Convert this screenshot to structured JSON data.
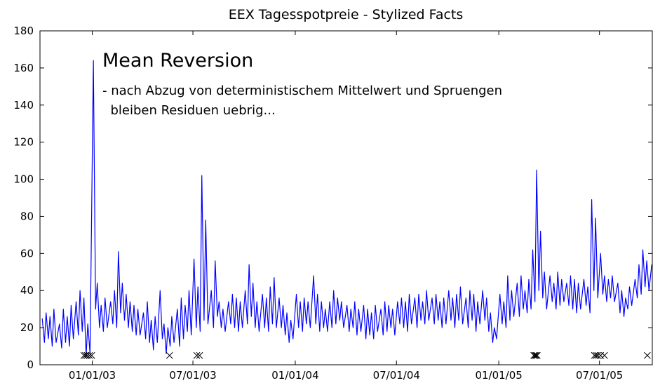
{
  "chart_data": {
    "type": "line",
    "title": "EEX Tagesspotpreie - Stylized Facts",
    "annotations": [
      "Mean Reversion",
      "- nach Abzug von deterministischem Mittelwert und Spruengen",
      "  bleiben Residuen uebrig..."
    ],
    "xlim": [
      "09/29/02",
      "10/04/05"
    ],
    "xticks": [
      "01/01/03",
      "07/01/03",
      "01/01/04",
      "07/01/04",
      "01/01/05",
      "07/01/05"
    ],
    "ylim": [
      0,
      180
    ],
    "yticks": [
      0,
      20,
      40,
      60,
      80,
      100,
      120,
      140,
      160,
      180
    ],
    "series": [
      {
        "color": "#0000ff",
        "x": [
          "10/03/02",
          "10/07/02",
          "10/10/02",
          "10/14/02",
          "10/17/02",
          "10/21/02",
          "10/24/02",
          "10/28/02",
          "11/03/02",
          "11/07/02",
          "11/10/02",
          "11/14/02",
          "11/17/02",
          "11/21/02",
          "11/24/02",
          "11/28/02",
          "12/03/02",
          "12/07/02",
          "12/10/02",
          "12/14/02",
          "12/17/02",
          "12/21/02",
          "12/24/02",
          "12/28/02",
          "01/03/03",
          "01/07/03",
          "01/10/03",
          "01/14/03",
          "01/17/03",
          "01/21/03",
          "01/24/03",
          "01/28/03",
          "02/03/03",
          "02/07/03",
          "02/10/03",
          "02/14/03",
          "02/17/03",
          "02/21/03",
          "02/24/03",
          "02/28/03",
          "03/03/03",
          "03/07/03",
          "03/10/03",
          "03/14/03",
          "03/17/03",
          "03/21/03",
          "03/24/03",
          "03/28/03",
          "04/03/03",
          "04/07/03",
          "04/10/03",
          "04/14/03",
          "04/17/03",
          "04/21/03",
          "04/24/03",
          "04/28/03",
          "05/03/03",
          "05/07/03",
          "05/10/03",
          "05/14/03",
          "05/17/03",
          "05/21/03",
          "05/24/03",
          "05/28/03",
          "06/03/03",
          "06/07/03",
          "06/10/03",
          "06/14/03",
          "06/17/03",
          "06/21/03",
          "06/24/03",
          "06/28/03",
          "07/03/03",
          "07/07/03",
          "07/10/03",
          "07/14/03",
          "07/17/03",
          "07/21/03",
          "07/24/03",
          "07/28/03",
          "08/03/03",
          "08/07/03",
          "08/10/03",
          "08/14/03",
          "08/17/03",
          "08/21/03",
          "08/24/03",
          "08/28/03",
          "09/03/03",
          "09/07/03",
          "09/10/03",
          "09/14/03",
          "09/17/03",
          "09/21/03",
          "09/24/03",
          "09/28/03",
          "10/03/03",
          "10/07/03",
          "10/10/03",
          "10/14/03",
          "10/17/03",
          "10/21/03",
          "10/24/03",
          "10/28/03",
          "11/03/03",
          "11/07/03",
          "11/10/03",
          "11/14/03",
          "11/17/03",
          "11/21/03",
          "11/24/03",
          "11/28/03",
          "12/03/03",
          "12/07/03",
          "12/10/03",
          "12/14/03",
          "12/17/03",
          "12/21/03",
          "12/24/03",
          "12/28/03",
          "01/03/04",
          "01/07/04",
          "01/10/04",
          "01/14/04",
          "01/17/04",
          "01/21/04",
          "01/24/04",
          "01/28/04",
          "02/03/04",
          "02/07/04",
          "02/10/04",
          "02/14/04",
          "02/17/04",
          "02/21/04",
          "02/24/04",
          "02/28/04",
          "03/03/04",
          "03/07/04",
          "03/10/04",
          "03/14/04",
          "03/17/04",
          "03/21/04",
          "03/24/04",
          "03/28/04",
          "04/03/04",
          "04/07/04",
          "04/10/04",
          "04/14/04",
          "04/17/04",
          "04/21/04",
          "04/24/04",
          "04/28/04",
          "05/03/04",
          "05/07/04",
          "05/10/04",
          "05/14/04",
          "05/17/04",
          "05/21/04",
          "05/24/04",
          "05/28/04",
          "06/03/04",
          "06/07/04",
          "06/10/04",
          "06/14/04",
          "06/17/04",
          "06/21/04",
          "06/24/04",
          "06/28/04",
          "07/03/04",
          "07/07/04",
          "07/10/04",
          "07/14/04",
          "07/17/04",
          "07/21/04",
          "07/24/04",
          "07/28/04",
          "08/03/04",
          "08/07/04",
          "08/10/04",
          "08/14/04",
          "08/17/04",
          "08/21/04",
          "08/24/04",
          "08/28/04",
          "09/03/04",
          "09/07/04",
          "09/10/04",
          "09/14/04",
          "09/17/04",
          "09/21/04",
          "09/24/04",
          "09/28/04",
          "10/03/04",
          "10/07/04",
          "10/10/04",
          "10/14/04",
          "10/17/04",
          "10/21/04",
          "10/24/04",
          "10/28/04",
          "11/03/04",
          "11/07/04",
          "11/10/04",
          "11/14/04",
          "11/17/04",
          "11/21/04",
          "11/24/04",
          "11/28/04",
          "12/03/04",
          "12/07/04",
          "12/10/04",
          "12/14/04",
          "12/17/04",
          "12/21/04",
          "12/24/04",
          "12/28/04",
          "01/03/05",
          "01/07/05",
          "01/10/05",
          "01/14/05",
          "01/17/05",
          "01/21/05",
          "01/24/05",
          "01/28/05",
          "02/03/05",
          "02/07/05",
          "02/10/05",
          "02/14/05",
          "02/17/05",
          "02/21/05",
          "02/24/05",
          "02/28/05",
          "03/03/05",
          "03/07/05",
          "03/10/05",
          "03/14/05",
          "03/17/05",
          "03/21/05",
          "03/24/05",
          "03/28/05",
          "04/03/05",
          "04/07/05",
          "04/10/05",
          "04/14/05",
          "04/17/05",
          "04/21/05",
          "04/24/05",
          "04/28/05",
          "05/03/05",
          "05/07/05",
          "05/10/05",
          "05/14/05",
          "05/17/05",
          "05/21/05",
          "05/24/05",
          "05/28/05",
          "06/03/05",
          "06/07/05",
          "06/10/05",
          "06/14/05",
          "06/17/05",
          "06/21/05",
          "06/24/05",
          "06/28/05",
          "07/03/05",
          "07/07/05",
          "07/10/05",
          "07/14/05",
          "07/17/05",
          "07/21/05",
          "07/24/05",
          "07/28/05",
          "08/03/05",
          "08/07/05",
          "08/10/05",
          "08/14/05",
          "08/17/05",
          "08/21/05",
          "08/24/05",
          "08/28/05",
          "09/03/05",
          "09/07/05",
          "09/10/05",
          "09/14/05",
          "09/17/05",
          "09/21/05",
          "09/24/05",
          "09/28/05",
          "10/03/05"
        ],
        "values": [
          25,
          12,
          28,
          14,
          26,
          10,
          30,
          12,
          22,
          9,
          30,
          12,
          26,
          10,
          32,
          14,
          34,
          16,
          40,
          18,
          36,
          5,
          22,
          6,
          164,
          30,
          44,
          20,
          32,
          18,
          36,
          20,
          34,
          22,
          40,
          20,
          61,
          28,
          44,
          24,
          38,
          20,
          34,
          18,
          32,
          16,
          30,
          16,
          28,
          14,
          34,
          12,
          24,
          8,
          26,
          12,
          40,
          14,
          22,
          6,
          20,
          10,
          26,
          12,
          30,
          10,
          36,
          14,
          32,
          18,
          40,
          16,
          57,
          20,
          42,
          18,
          102,
          24,
          78,
          22,
          40,
          20,
          56,
          26,
          34,
          20,
          30,
          18,
          34,
          22,
          38,
          20,
          36,
          18,
          34,
          20,
          40,
          22,
          54,
          26,
          44,
          20,
          34,
          18,
          38,
          20,
          36,
          18,
          42,
          22,
          47,
          20,
          36,
          20,
          32,
          16,
          28,
          12,
          24,
          14,
          38,
          20,
          34,
          18,
          36,
          22,
          34,
          20,
          48,
          22,
          38,
          18,
          34,
          20,
          30,
          18,
          34,
          20,
          40,
          22,
          36,
          24,
          34,
          20,
          32,
          18,
          30,
          20,
          34,
          16,
          30,
          18,
          32,
          14,
          30,
          16,
          28,
          14,
          32,
          18,
          30,
          16,
          34,
          18,
          32,
          20,
          30,
          16,
          34,
          22,
          36,
          20,
          34,
          18,
          38,
          22,
          36,
          20,
          38,
          24,
          34,
          22,
          40,
          24,
          36,
          22,
          38,
          24,
          34,
          20,
          36,
          22,
          40,
          24,
          36,
          20,
          38,
          24,
          42,
          22,
          36,
          20,
          40,
          24,
          38,
          18,
          34,
          22,
          40,
          24,
          36,
          18,
          28,
          12,
          20,
          14,
          38,
          22,
          34,
          20,
          48,
          24,
          40,
          26,
          44,
          26,
          48,
          30,
          40,
          28,
          46,
          30,
          62,
          34,
          105,
          40,
          72,
          36,
          50,
          30,
          48,
          34,
          44,
          30,
          50,
          32,
          46,
          34,
          44,
          32,
          48,
          30,
          46,
          28,
          44,
          30,
          46,
          32,
          42,
          28,
          89,
          40,
          79,
          36,
          60,
          38,
          48,
          34,
          46,
          36,
          48,
          34,
          44,
          28,
          40,
          26,
          36,
          30,
          42,
          32,
          46,
          36,
          54,
          38,
          62,
          42,
          56,
          40,
          54
        ]
      }
    ],
    "jump_markers": {
      "color": "#000000",
      "x": [
        "12/17/02",
        "12/20/02",
        "12/23/02",
        "12/27/02",
        "12/31/02",
        "05/20/03",
        "07/08/03",
        "07/13/03",
        "03/05/05",
        "03/07/05",
        "03/09/05",
        "03/11/05",
        "06/22/05",
        "06/25/05",
        "06/28/05",
        "07/03/05",
        "07/10/05",
        "09/25/05"
      ],
      "values": [
        5,
        5,
        5,
        5,
        5,
        5,
        5,
        5,
        5,
        5,
        5,
        5,
        5,
        5,
        5,
        5,
        5,
        5
      ]
    }
  }
}
